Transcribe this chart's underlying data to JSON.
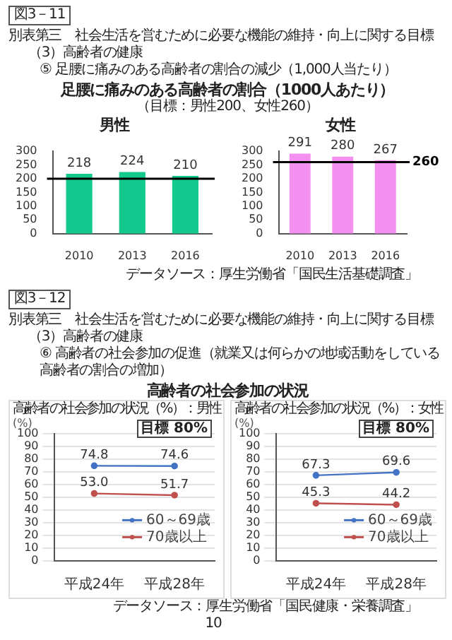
{
  "chart_data": [
    {
      "type": "bar",
      "title": "男性",
      "subtitle": "（目標：男性200、女性260）",
      "annotations": [
        "図3－11",
        "別表第三　社会生活を営むために必要な機能の維持・向上に関する目標",
        "（3）高齢者の健康",
        "⑤ 足腰に痛みのある高齢者の割合の減少（1,000人当たり）",
        "足腰に痛みのある高齢者の割合（1000人あたり）"
      ],
      "categories": [
        "2010",
        "2013",
        "2016"
      ],
      "values": [
        218,
        224,
        210
      ],
      "color": "#14c98e",
      "ylim": [
        0,
        300
      ],
      "yticks": [
        0,
        50,
        100,
        150,
        200,
        250,
        300
      ],
      "grid": false,
      "data_labels": true,
      "ref_lines": [
        {
          "axis": "y",
          "value": 200,
          "color": "#000000"
        }
      ]
    },
    {
      "type": "bar",
      "title": "女性",
      "annotations": [
        "データソース：厚生労働省「国民生活基礎調査」"
      ],
      "categories": [
        "2010",
        "2013",
        "2016"
      ],
      "values": [
        291,
        280,
        267
      ],
      "color": "#f490f0",
      "ylim": [
        0,
        300
      ],
      "yticks": [
        0,
        50,
        100,
        150,
        200,
        250,
        300
      ],
      "grid": false,
      "data_labels": true,
      "ref_lines": [
        {
          "axis": "y",
          "value": 260,
          "label": "260",
          "color": "#000000"
        }
      ]
    },
    {
      "type": "line",
      "title": "高齢者の社会参加の状況（%）：男性",
      "ylabel": "(%)",
      "annotations": [
        "目標 80%",
        "図3－12",
        "別表第三　社会生活を営むために必要な機能の維持・向上に関する目標",
        "（3）高齢者の健康",
        "⑥ 高齢者の社会参加の促進（就業又は何らかの地域活動をしている高齢者の割合の増加）",
        "高齢者の社会参加の状況"
      ],
      "categories": [
        "平成24年",
        "平成28年"
      ],
      "series": [
        {
          "name": "60～69歳",
          "color": "#4472c4",
          "values": [
            74.8,
            74.6
          ],
          "value_labels": [
            "74.8",
            "74.6"
          ]
        },
        {
          "name": "70歳以上",
          "color": "#c0504d",
          "values": [
            53.0,
            51.7
          ],
          "value_labels": [
            "53.0",
            "51.7"
          ]
        }
      ],
      "ylim": [
        0,
        100
      ],
      "yticks": [
        0,
        10,
        20,
        30,
        40,
        50,
        60,
        70,
        80,
        90,
        100
      ],
      "grid": "y",
      "legend": "right",
      "marker": "circle"
    },
    {
      "type": "line",
      "title": "高齢者の社会参加の状況（%）：女性",
      "ylabel": "(%)",
      "annotations": [
        "目標 80%",
        "データソース：厚生労働省「国民健康・栄養調査」",
        "10"
      ],
      "categories": [
        "平成24年",
        "平成28年"
      ],
      "series": [
        {
          "name": "60～69歳",
          "color": "#4472c4",
          "values": [
            67.3,
            69.6
          ],
          "value_labels": [
            "67.3",
            "69.6"
          ]
        },
        {
          "name": "70歳以上",
          "color": "#c0504d",
          "values": [
            45.3,
            44.2
          ],
          "value_labels": [
            "45.3",
            "44.2"
          ]
        }
      ],
      "ylim": [
        0,
        100
      ],
      "yticks": [
        0,
        10,
        20,
        30,
        40,
        50,
        60,
        70,
        80,
        90,
        100
      ],
      "grid": "y",
      "legend": "right",
      "marker": "circle"
    }
  ]
}
